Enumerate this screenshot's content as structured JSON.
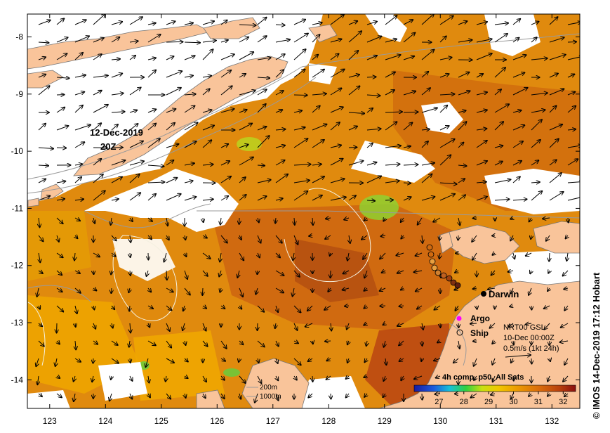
{
  "map": {
    "date_label": "12-Dec-2019",
    "time_label": "20Z",
    "lon_ticks": [
      "123",
      "124",
      "125",
      "126",
      "127",
      "128",
      "129",
      "130",
      "131",
      "132"
    ],
    "lat_ticks": [
      "-8",
      "-9",
      "-10",
      "-11",
      "-12",
      "-13",
      "-14"
    ],
    "lon_range": [
      122.6,
      132.5
    ],
    "lat_range": [
      -7.6,
      -14.5
    ],
    "colors": {
      "land": "#f9c49a",
      "no_data": "#ffffff",
      "sst_warm": "#c8580d",
      "sst_mid": "#e08a0e",
      "sst_cool": "#f0a800",
      "contour": "#9a9a9a",
      "argo": "#ff00ff"
    }
  },
  "places": {
    "city": "Darwin",
    "argo_label": "Argo",
    "ship_label": "Ship"
  },
  "currents_legend": {
    "source": "NRT00 GSL",
    "time": "10-Dec 00:00Z",
    "scale": "0.5m/s (1kt 24h)"
  },
  "depth_legend": {
    "contour_1": "200m",
    "contour_2": "1000m"
  },
  "colorbar": {
    "title": "4h comp, p50, All Sats",
    "ticks": [
      "27",
      "28",
      "29",
      "30",
      "31",
      "32"
    ],
    "range": [
      26,
      32.5
    ]
  },
  "credit": "© IMOS 14-Dec-2019 17:12 Hobart"
}
